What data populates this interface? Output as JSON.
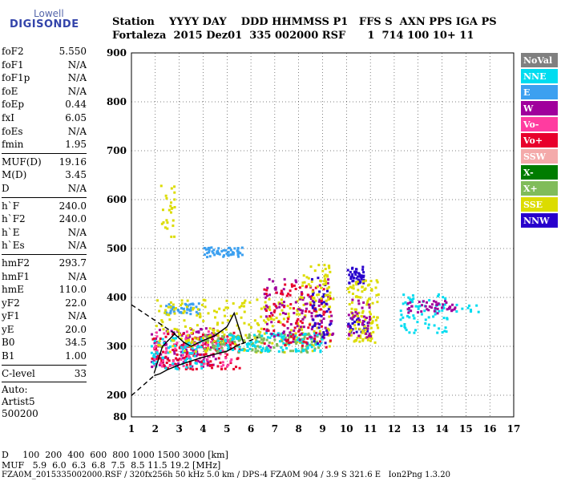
{
  "logo": {
    "line1": "Lowell",
    "line2": "DIGISONDE"
  },
  "header": {
    "line1": "Station    YYYY DAY    DDD HHMMSS P1   FFS S  AXN PPS IGA PS",
    "line2": "Fortaleza  2015 Dez01  335 002000 RSF      1  714 100 10+ 11"
  },
  "params": [
    [
      {
        "label": "foF2",
        "value": "5.550"
      },
      {
        "label": "foF1",
        "value": "N/A"
      },
      {
        "label": "foF1p",
        "value": "N/A"
      },
      {
        "label": "foE",
        "value": "N/A"
      },
      {
        "label": "foEp",
        "value": "0.44"
      },
      {
        "label": "fxI",
        "value": "6.05"
      },
      {
        "label": "foEs",
        "value": "N/A"
      },
      {
        "label": "fmin",
        "value": "1.95"
      }
    ],
    [
      {
        "label": "MUF(D)",
        "value": "19.16"
      },
      {
        "label": "M(D)",
        "value": "3.45"
      },
      {
        "label": "D",
        "value": "N/A"
      }
    ],
    [
      {
        "label": "h`F",
        "value": "240.0"
      },
      {
        "label": "h`F2",
        "value": "240.0"
      },
      {
        "label": "h`E",
        "value": "N/A"
      },
      {
        "label": "h`Es",
        "value": "N/A"
      }
    ],
    [
      {
        "label": "hmF2",
        "value": "293.7"
      },
      {
        "label": "hmF1",
        "value": "N/A"
      },
      {
        "label": "hmE",
        "value": "110.0"
      },
      {
        "label": "yF2",
        "value": "22.0"
      },
      {
        "label": "yF1",
        "value": "N/A"
      },
      {
        "label": "yE",
        "value": "20.0"
      },
      {
        "label": "B0",
        "value": "34.5"
      },
      {
        "label": "B1",
        "value": "1.00"
      }
    ],
    [
      {
        "label": "C-level",
        "value": "33"
      }
    ]
  ],
  "auto": {
    "line1": "Auto:",
    "line2": "Artist5",
    "line3": "500200"
  },
  "footer": {
    "d_row": "D     100  200  400  600  800 1000 1500 3000 [km]",
    "muf_row": "MUF   5.9  6.0  6.3  6.8  7.5  8.5 11.5 19.2 [MHz]",
    "file_row": "FZA0M_2015335002000.RSF / 320fx256h 50 kHz 5.0 km / DPS-4 FZA0M 904 / 3.9 S 321.6 E   Ion2Png 1.3.20"
  },
  "legend": [
    {
      "label": "NoVal",
      "color": "#808080"
    },
    {
      "label": "NNE",
      "color": "#00dcf0"
    },
    {
      "label": "E",
      "color": "#3ca0f0"
    },
    {
      "label": "W",
      "color": "#a0009c"
    },
    {
      "label": "Vo-",
      "color": "#ff3ca0"
    },
    {
      "label": "Vo+",
      "color": "#e8002c"
    },
    {
      "label": "SSW",
      "color": "#f4aaaa"
    },
    {
      "label": "X-",
      "color": "#007c00"
    },
    {
      "label": "X+",
      "color": "#80bc5a"
    },
    {
      "label": "SSE",
      "color": "#dcdc00"
    },
    {
      "label": "NNW",
      "color": "#2800cc"
    }
  ],
  "chart_data": {
    "type": "scatter",
    "xlim": [
      1,
      17
    ],
    "ylim": [
      80,
      900
    ],
    "x_ticks": [
      1,
      2,
      3,
      4,
      5,
      6,
      7,
      8,
      9,
      10,
      11,
      12,
      13,
      14,
      15,
      16,
      17
    ],
    "y_ticks": [
      80,
      200,
      300,
      400,
      500,
      600,
      700,
      800,
      900
    ],
    "grid": true,
    "legend_position": "right",
    "clusters": [
      {
        "series": "SSE",
        "x": [
          2.2,
          2.8
        ],
        "y": [
          520,
          640
        ],
        "n": 25
      },
      {
        "series": "E",
        "x": [
          4.0,
          5.6
        ],
        "y": [
          485,
          505
        ],
        "n": 55
      },
      {
        "series": "E",
        "x": [
          2.3,
          3.8
        ],
        "y": [
          368,
          390
        ],
        "n": 45
      },
      {
        "series": "W",
        "x": [
          1.8,
          4.5
        ],
        "y": [
          260,
          340
        ],
        "n": 120
      },
      {
        "series": "Vo+",
        "x": [
          1.8,
          5.5
        ],
        "y": [
          255,
          330
        ],
        "n": 150
      },
      {
        "series": "Vo-",
        "x": [
          1.9,
          5.2
        ],
        "y": [
          260,
          335
        ],
        "n": 90
      },
      {
        "series": "NNE",
        "x": [
          1.8,
          4.0
        ],
        "y": [
          255,
          320
        ],
        "n": 70
      },
      {
        "series": "SSE",
        "x": [
          2.0,
          9.4
        ],
        "y": [
          290,
          400
        ],
        "n": 260
      },
      {
        "series": "X+",
        "x": [
          4.0,
          9.0
        ],
        "y": [
          290,
          330
        ],
        "n": 140
      },
      {
        "series": "NNE",
        "x": [
          4.5,
          9.0
        ],
        "y": [
          290,
          330
        ],
        "n": 110
      },
      {
        "series": "W",
        "x": [
          6.5,
          9.4
        ],
        "y": [
          300,
          440
        ],
        "n": 110
      },
      {
        "series": "Vo+",
        "x": [
          6.5,
          9.3
        ],
        "y": [
          300,
          430
        ],
        "n": 90
      },
      {
        "series": "NNW",
        "x": [
          8.5,
          9.3
        ],
        "y": [
          300,
          450
        ],
        "n": 40
      },
      {
        "series": "SSE",
        "x": [
          8.0,
          9.3
        ],
        "y": [
          400,
          470
        ],
        "n": 50
      },
      {
        "series": "NNW",
        "x": [
          10.0,
          10.7
        ],
        "y": [
          430,
          465
        ],
        "n": 45
      },
      {
        "series": "NNW",
        "x": [
          10.0,
          11.0
        ],
        "y": [
          330,
          360
        ],
        "n": 30
      },
      {
        "series": "SSE",
        "x": [
          10.0,
          11.3
        ],
        "y": [
          310,
          440
        ],
        "n": 110
      },
      {
        "series": "W",
        "x": [
          10.0,
          11.0
        ],
        "y": [
          320,
          400
        ],
        "n": 35
      },
      {
        "series": "NNE",
        "x": [
          12.2,
          14.2
        ],
        "y": [
          330,
          410
        ],
        "n": 70
      },
      {
        "series": "W",
        "x": [
          12.5,
          14.6
        ],
        "y": [
          370,
          395
        ],
        "n": 45
      },
      {
        "series": "NNE",
        "x": [
          14.5,
          15.5
        ],
        "y": [
          370,
          390
        ],
        "n": 10
      }
    ],
    "curves": [
      {
        "style": "solid",
        "x": [
          1.95,
          2.2,
          2.5,
          3.0,
          3.5,
          4.0,
          4.5,
          5.0,
          5.55
        ],
        "y": [
          240,
          244,
          252,
          262,
          270,
          278,
          284,
          290,
          305
        ]
      },
      {
        "style": "solid",
        "x": [
          1.95,
          2.3,
          2.8,
          3.2,
          3.5,
          4.0,
          4.5,
          5.0,
          5.3,
          5.55,
          5.7
        ],
        "y": [
          245,
          300,
          325,
          308,
          300,
          312,
          322,
          340,
          368,
          330,
          305
        ]
      },
      {
        "style": "dashed",
        "x": [
          1.0,
          1.95
        ],
        "y": [
          198,
          240
        ]
      },
      {
        "style": "dashed",
        "x": [
          1.0,
          3.0
        ],
        "y": [
          385,
          320
        ]
      },
      {
        "style": "dashed",
        "x": [
          5.6,
          6.3
        ],
        "y": [
          305,
          318
        ]
      }
    ]
  }
}
